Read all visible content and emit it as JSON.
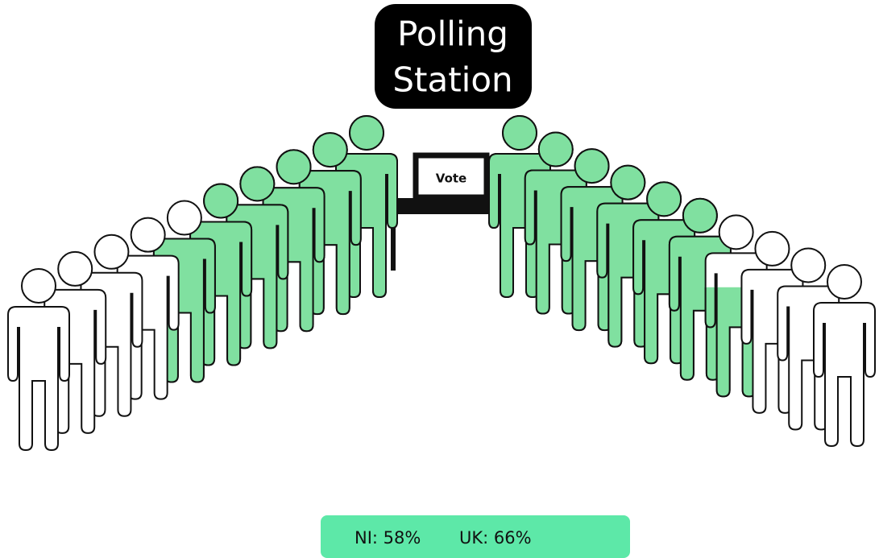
{
  "chart_data": {
    "type": "pictograph",
    "title": [
      "Polling",
      "Station"
    ],
    "booth_label": "Vote",
    "values": [
      58,
      66
    ],
    "value_labels": [
      "NI: 58%",
      "UK: 66%"
    ],
    "color": "#80e0a0",
    "legend_color": "#5de8a8"
  }
}
